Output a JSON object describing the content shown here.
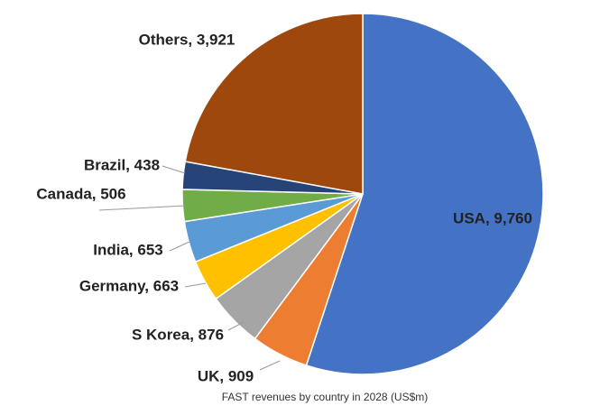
{
  "chart_data": {
    "type": "pie",
    "caption": "FAST revenues by country in 2028 (US$m)",
    "values": [
      9760,
      909,
      876,
      663,
      653,
      506,
      438,
      3921
    ],
    "value_labels": [
      "USA, 9,760",
      "UK, 909",
      "S Korea, 876",
      "Germany, 663",
      "India, 653",
      "Canada, 506",
      "Brazil, 438",
      "Others, 3,921"
    ],
    "colors": [
      "#4472c4",
      "#ed7d31",
      "#a5a5a5",
      "#ffc000",
      "#5b9bd5",
      "#70ad47",
      "#264478",
      "#9e480e"
    ]
  }
}
